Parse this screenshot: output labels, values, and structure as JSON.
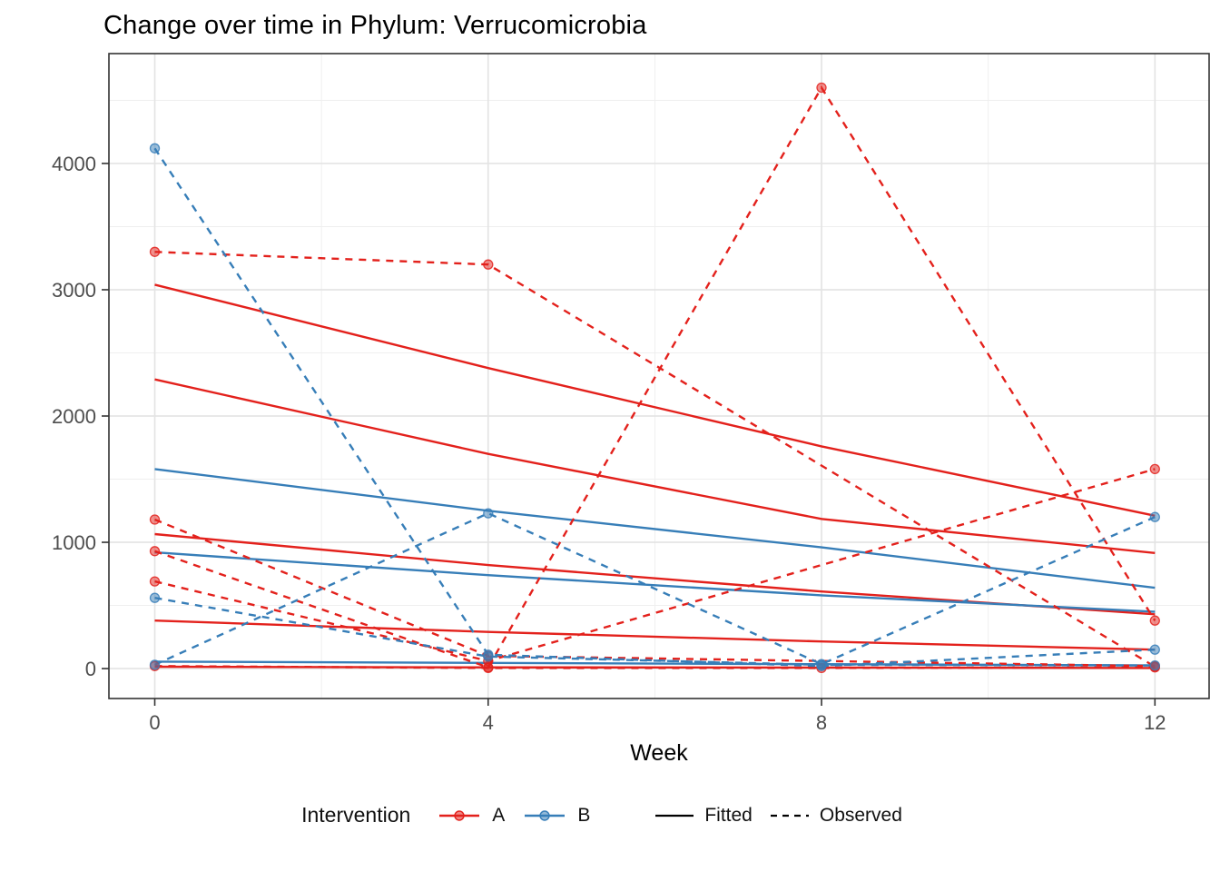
{
  "title": "Change over time in Phylum: Verrucomicrobia",
  "colors": {
    "intervention_a": "#E3211C",
    "intervention_b": "#377EB8",
    "black_key": "#000000",
    "grid_major": "#E4E4E4",
    "grid_minor": "#EFEFEF",
    "panel_border": "#333333",
    "axis_text": "#4D4D4D",
    "title_text": "#000000"
  },
  "legend": {
    "title": "Intervention",
    "a_label": "A",
    "b_label": "B",
    "fitted_label": "Fitted",
    "observed_label": "Observed"
  },
  "chart_data": {
    "type": "line",
    "title": "Change over time in Phylum: Verrucomicrobia",
    "xlabel": "Week",
    "ylabel": "",
    "xlim": [
      -0.55,
      12.65
    ],
    "ylim": [
      -237,
      4870
    ],
    "x_ticks": [
      0,
      4,
      8,
      12
    ],
    "y_ticks": [
      0,
      1000,
      2000,
      3000,
      4000
    ],
    "x_minor": [
      2,
      6,
      10
    ],
    "y_minor": [
      500,
      1500,
      2500,
      3500,
      4500
    ],
    "grid": true,
    "legend_position": "bottom",
    "series": [
      {
        "name": "A-fitted-1",
        "intervention": "A",
        "style": "fitted",
        "show_points": false,
        "x": [
          0,
          4,
          8,
          12
        ],
        "y": [
          3040,
          2380,
          1760,
          1210
        ]
      },
      {
        "name": "A-fitted-2",
        "intervention": "A",
        "style": "fitted",
        "show_points": false,
        "x": [
          0,
          4,
          8,
          12
        ],
        "y": [
          2290,
          1700,
          1185,
          915
        ]
      },
      {
        "name": "A-fitted-3",
        "intervention": "A",
        "style": "fitted",
        "show_points": false,
        "x": [
          0,
          4,
          8,
          12
        ],
        "y": [
          1065,
          820,
          610,
          430
        ]
      },
      {
        "name": "A-fitted-4",
        "intervention": "A",
        "style": "fitted",
        "show_points": false,
        "x": [
          0,
          4,
          8,
          12
        ],
        "y": [
          380,
          290,
          215,
          150
        ]
      },
      {
        "name": "A-fitted-5",
        "intervention": "A",
        "style": "fitted",
        "show_points": false,
        "x": [
          0,
          4,
          8,
          12
        ],
        "y": [
          15,
          10,
          8,
          5
        ]
      },
      {
        "name": "B-fitted-1",
        "intervention": "B",
        "style": "fitted",
        "show_points": false,
        "x": [
          0,
          4,
          8,
          12
        ],
        "y": [
          1580,
          1250,
          960,
          640
        ]
      },
      {
        "name": "B-fitted-2",
        "intervention": "B",
        "style": "fitted",
        "show_points": false,
        "x": [
          0,
          4,
          8,
          12
        ],
        "y": [
          920,
          740,
          580,
          450
        ]
      },
      {
        "name": "B-fitted-3",
        "intervention": "B",
        "style": "fitted",
        "show_points": false,
        "x": [
          0,
          4,
          8,
          12
        ],
        "y": [
          55,
          45,
          35,
          25
        ]
      },
      {
        "name": "A-observed-1",
        "intervention": "A",
        "style": "observed",
        "show_points": true,
        "x": [
          0,
          4,
          12
        ],
        "y": [
          3300,
          3200,
          15
        ]
      },
      {
        "name": "A-observed-2",
        "intervention": "A",
        "style": "observed",
        "show_points": true,
        "x": [
          0,
          4,
          12
        ],
        "y": [
          1180,
          100,
          20
        ]
      },
      {
        "name": "A-observed-3",
        "intervention": "A",
        "style": "observed",
        "show_points": true,
        "x": [
          0,
          4,
          8,
          12
        ],
        "y": [
          930,
          10,
          4600,
          380
        ]
      },
      {
        "name": "A-observed-4",
        "intervention": "A",
        "style": "observed",
        "show_points": true,
        "x": [
          0,
          4,
          12
        ],
        "y": [
          690,
          60,
          1580
        ]
      },
      {
        "name": "A-observed-5",
        "intervention": "A",
        "style": "observed",
        "show_points": true,
        "x": [
          0,
          4,
          8,
          12
        ],
        "y": [
          20,
          5,
          5,
          10
        ]
      },
      {
        "name": "B-observed-1",
        "intervention": "B",
        "style": "observed",
        "show_points": true,
        "x": [
          0,
          4,
          8,
          12
        ],
        "y": [
          4120,
          110,
          20,
          150
        ]
      },
      {
        "name": "B-observed-2",
        "intervention": "B",
        "style": "observed",
        "show_points": true,
        "x": [
          0,
          4,
          8,
          12
        ],
        "y": [
          30,
          1230,
          35,
          1200
        ]
      },
      {
        "name": "B-observed-3",
        "intervention": "B",
        "style": "observed",
        "show_points": true,
        "x": [
          0,
          4,
          8,
          12
        ],
        "y": [
          560,
          95,
          30,
          25
        ]
      }
    ]
  }
}
